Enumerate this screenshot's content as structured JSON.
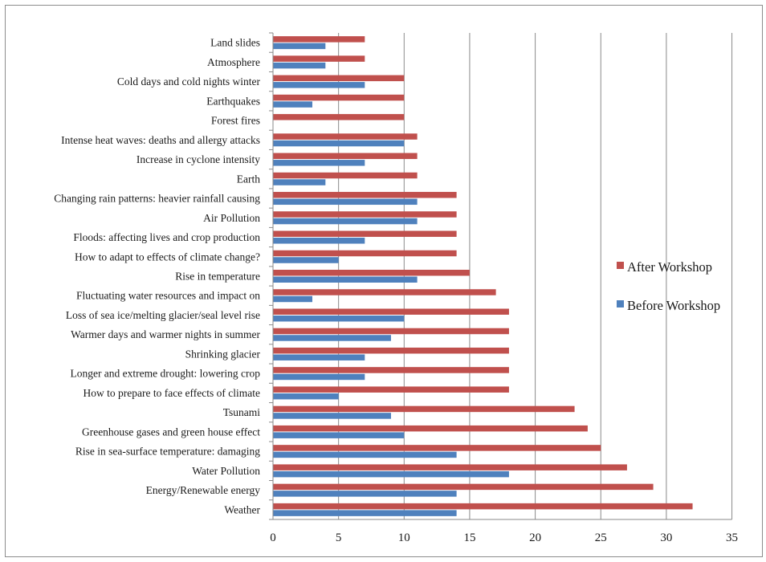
{
  "chart_data": {
    "type": "bar",
    "orientation": "horizontal",
    "title": "",
    "xlabel": "",
    "ylabel": "",
    "xlim": [
      0,
      35
    ],
    "x_ticks": [
      "0",
      "5",
      "10",
      "15",
      "20",
      "25",
      "30",
      "35"
    ],
    "grid": "vertical major gridlines",
    "legend_position": "right",
    "categories": [
      "Weather",
      "Energy/Renewable energy",
      "Water Pollution",
      "Rise in sea-surface temperature: damaging",
      "Greenhouse gases and green house effect",
      "Tsunami",
      "How to prepare to face effects of climate",
      "Longer and extreme drought: lowering crop",
      "Shrinking glacier",
      "Warmer days and warmer nights in summer",
      "Loss of sea ice/melting glacier/seal level rise",
      "Fluctuating water resources and impact on",
      "Rise in temperature",
      "How to adapt to effects of climate change?",
      "Floods: affecting lives and crop production",
      "Air Pollution",
      "Changing rain patterns: heavier rainfall causing",
      "Earth",
      "Increase in cyclone intensity",
      "Intense heat waves: deaths and allergy attacks",
      "Forest fires",
      "Earthquakes",
      "Cold days and cold nights winter",
      "Atmosphere",
      "Land slides"
    ],
    "series": [
      {
        "name": "After Workshop",
        "color": "#c0504d",
        "values": [
          32,
          29,
          27,
          25,
          24,
          23,
          18,
          18,
          18,
          18,
          18,
          17,
          15,
          14,
          14,
          14,
          14,
          11,
          11,
          11,
          10,
          10,
          10,
          7,
          7
        ]
      },
      {
        "name": "Before Workshop",
        "color": "#4f81bd",
        "values": [
          14,
          14,
          18,
          14,
          10,
          9,
          5,
          7,
          7,
          9,
          10,
          3,
          11,
          5,
          7,
          11,
          11,
          4,
          7,
          10,
          0,
          3,
          7,
          4,
          4
        ]
      }
    ]
  }
}
